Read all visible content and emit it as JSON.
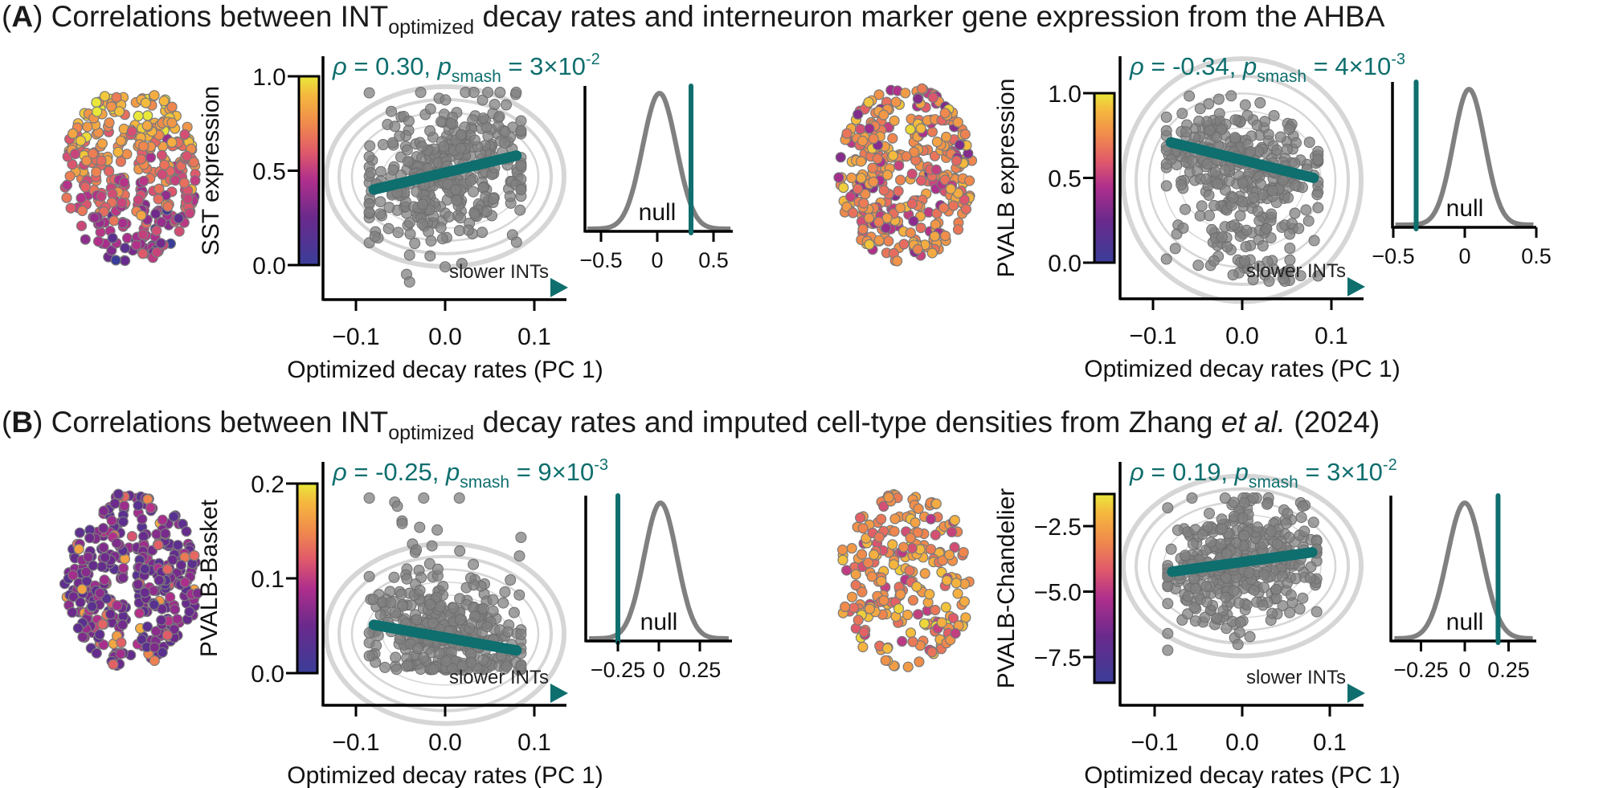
{
  "titles": [
    {
      "open": "(",
      "letter": "A",
      "close": ") Correlations between INT",
      "sub": "optimized",
      "rest": " decay rates and interneuron marker gene expression from the AHBA"
    },
    {
      "open": "(",
      "letter": "B",
      "close": ") Correlations between INT",
      "sub": "optimized",
      "rest": " decay rates and imputed cell-type densities from Zhang ",
      "italic": "et al.",
      "tail": " (2024)"
    }
  ],
  "colors": {
    "accent": "#0f6e6e",
    "points": "#808080",
    "contours": "#d6d6d6",
    "null_curve": "#808080",
    "colormap": [
      "#3a3d98",
      "#6a2a8c",
      "#b02f8c",
      "#e05a6a",
      "#f08a4c",
      "#f5b83e",
      "#e8e83a"
    ]
  },
  "chart_data": [
    {
      "id": "A-SST",
      "type": "scatter",
      "ylabel": "SST expression",
      "xlabel": "Optimized decay rates (PC 1)",
      "xticks": [
        {
          "value": -0.1,
          "label": "−0.1"
        },
        {
          "value": 0.0,
          "label": "0.0"
        },
        {
          "value": 0.1,
          "label": "0.1"
        }
      ],
      "yticks": [
        {
          "value": 0.0,
          "label": "0.0"
        },
        {
          "value": 0.5,
          "label": "0.5"
        },
        {
          "value": 1.0,
          "label": "1.0"
        }
      ],
      "colorbar_range": [
        0.0,
        1.0
      ],
      "regression": {
        "x": [
          -0.08,
          0.08
        ],
        "y": [
          0.4,
          0.58
        ]
      },
      "annotation": {
        "rho_symbol": "ρ",
        "rho_text": " = 0.30, ",
        "p_symbol": "p",
        "p_sub": "smash",
        "p_text": " = 3×10",
        "p_exp": "-2"
      },
      "arrow_label": "slower INTs",
      "null_inset": {
        "label": "null",
        "observed": 0.3,
        "xticks": [
          {
            "value": -0.5,
            "label": "−0.5"
          },
          {
            "value": 0,
            "label": "0"
          },
          {
            "value": 0.5,
            "label": "0.5"
          }
        ]
      }
    },
    {
      "id": "A-PVALB",
      "type": "scatter",
      "ylabel": "PVALB expression",
      "xlabel": "Optimized decay rates (PC 1)",
      "xticks": [
        {
          "value": -0.1,
          "label": "−0.1"
        },
        {
          "value": 0.0,
          "label": "0.0"
        },
        {
          "value": 0.1,
          "label": "0.1"
        }
      ],
      "yticks": [
        {
          "value": 0.0,
          "label": "0.0"
        },
        {
          "value": 0.5,
          "label": "0.5"
        },
        {
          "value": 1.0,
          "label": "1.0"
        }
      ],
      "colorbar_range": [
        0.0,
        1.0
      ],
      "regression": {
        "x": [
          -0.08,
          0.08
        ],
        "y": [
          0.71,
          0.5
        ]
      },
      "annotation": {
        "rho_symbol": "ρ",
        "rho_text": " = -0.34, ",
        "p_symbol": "p",
        "p_sub": "smash",
        "p_text": " = 4×10",
        "p_exp": "-3"
      },
      "arrow_label": "slower INTs",
      "null_inset": {
        "label": "null",
        "observed": -0.34,
        "xticks": [
          {
            "value": -0.5,
            "label": "−0.5"
          },
          {
            "value": 0,
            "label": "0"
          },
          {
            "value": 0.5,
            "label": "0.5"
          }
        ]
      }
    },
    {
      "id": "B-PVALB-Basket",
      "type": "scatter",
      "ylabel": "PVALB-Basket",
      "xlabel": "Optimized decay rates (PC 1)",
      "xticks": [
        {
          "value": -0.1,
          "label": "−0.1"
        },
        {
          "value": 0.0,
          "label": "0.0"
        },
        {
          "value": 0.1,
          "label": "0.1"
        }
      ],
      "yticks": [
        {
          "value": 0.0,
          "label": "0.0"
        },
        {
          "value": 0.1,
          "label": "0.1"
        },
        {
          "value": 0.2,
          "label": "0.2"
        }
      ],
      "colorbar_range": [
        0.0,
        0.2
      ],
      "regression": {
        "x": [
          -0.08,
          0.08
        ],
        "y": [
          0.051,
          0.024
        ]
      },
      "annotation": {
        "rho_symbol": "ρ",
        "rho_text": " = -0.25, ",
        "p_symbol": "p",
        "p_sub": "smash",
        "p_text": " = 9×10",
        "p_exp": "-3"
      },
      "arrow_label": "slower INTs",
      "null_inset": {
        "label": "null",
        "observed": -0.25,
        "xticks": [
          {
            "value": -0.25,
            "label": "−0.25"
          },
          {
            "value": 0,
            "label": "0"
          },
          {
            "value": 0.25,
            "label": "0.25"
          }
        ]
      }
    },
    {
      "id": "B-PVALB-Chandelier",
      "type": "scatter",
      "ylabel": "PVALB-Chandelier",
      "xlabel": "Optimized decay rates (PC 1)",
      "xticks": [
        {
          "value": -0.1,
          "label": "−0.1"
        },
        {
          "value": 0.0,
          "label": "0.0"
        },
        {
          "value": 0.1,
          "label": "0.1"
        }
      ],
      "yticks": [
        {
          "value": -2.5,
          "label": "−2.5"
        },
        {
          "value": -5.0,
          "label": "−5.0"
        },
        {
          "value": -7.5,
          "label": "−7.5"
        }
      ],
      "colorbar_range": [
        -8.5,
        -1.3
      ],
      "regression": {
        "x": [
          -0.08,
          0.08
        ],
        "y": [
          -4.24,
          -3.5
        ]
      },
      "annotation": {
        "rho_symbol": "ρ",
        "rho_text": " = 0.19, ",
        "p_symbol": "p",
        "p_sub": "smash",
        "p_text": " = 3×10",
        "p_exp": "-2"
      },
      "arrow_label": "slower INTs",
      "null_inset": {
        "label": "null",
        "observed": 0.19,
        "xticks": [
          {
            "value": -0.25,
            "label": "−0.25"
          },
          {
            "value": 0,
            "label": "0"
          },
          {
            "value": 0.25,
            "label": "0.25"
          }
        ]
      }
    }
  ]
}
